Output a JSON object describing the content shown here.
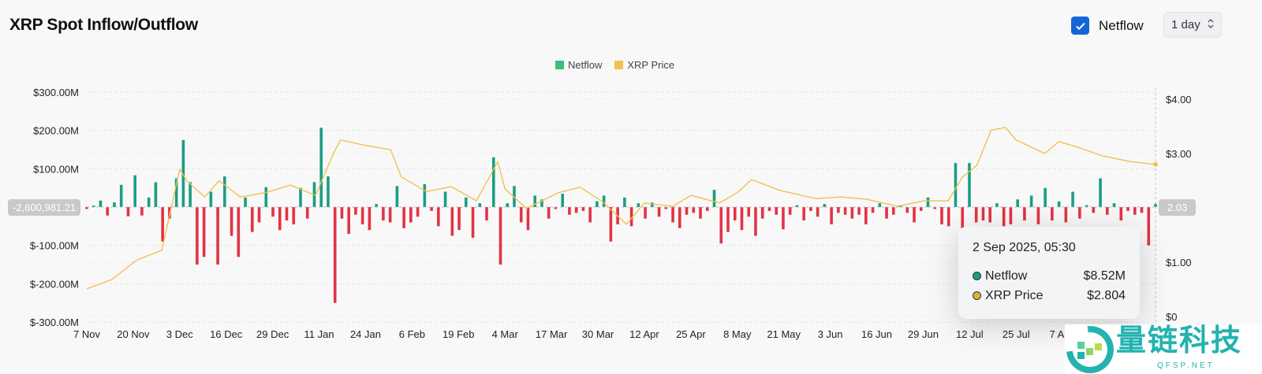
{
  "header": {
    "title": "XRP Spot Inflow/Outflow",
    "netflow_toggle_label": "Netflow",
    "netflow_checked": true,
    "interval_value": "1 day"
  },
  "colors": {
    "inflow": "#1a9e85",
    "outflow": "#e23344",
    "price": "#f2c14e",
    "legend_netflow": "#35c27a",
    "checkbox": "#1565d8"
  },
  "tooltip": {
    "date": "2 Sep 2025, 05:30",
    "rows": [
      {
        "name": "Netflow",
        "value": "$8.52M",
        "dot": "#1a9e85"
      },
      {
        "name": "XRP Price",
        "value": "$2.804",
        "dot": "#d9b13c"
      }
    ]
  },
  "crosshair": {
    "left_value": "-2,600,981.21",
    "right_value": "2.03"
  },
  "watermark": {
    "text": "量链科技",
    "sub": "QFSP.NET"
  },
  "chart_data": {
    "type": "bar+line",
    "legend": [
      "Netflow",
      "XRP Price"
    ],
    "legend_position": "top-center",
    "grid": true,
    "x_range": [
      "2024-11-07",
      "2025-09-02"
    ],
    "x_ticks": [
      "7 Nov",
      "20 Nov",
      "3 Dec",
      "16 Dec",
      "29 Dec",
      "11 Jan",
      "24 Jan",
      "6 Feb",
      "19 Feb",
      "4 Mar",
      "17 Mar",
      "30 Mar",
      "12 Apr",
      "25 Apr",
      "8 May",
      "21 May",
      "3 Jun",
      "16 Jun",
      "29 Jun",
      "12 Jul",
      "25 Jul",
      "7 Aug"
    ],
    "y_left": {
      "ticks": [
        "$300.00M",
        "$200.00M",
        "$100.00M",
        "$-100.00M",
        "$-200.00M",
        "$-300.00M"
      ],
      "tick_values": [
        300,
        200,
        100,
        -100,
        -200,
        -300
      ],
      "range": [
        -300,
        300
      ],
      "unit": "USD millions"
    },
    "y_right": {
      "ticks": [
        "$4.00",
        "$3.00",
        "$1.00",
        "$0"
      ],
      "tick_values": [
        4,
        3,
        1,
        0
      ],
      "range": [
        0,
        4
      ],
      "unit": "USD"
    },
    "series": [
      {
        "name": "Netflow",
        "type": "bar",
        "unit": "USD millions",
        "values": [
          -5,
          4,
          17,
          -22,
          12,
          58,
          -24,
          83,
          -22,
          25,
          65,
          -90,
          -30,
          75,
          175,
          65,
          -150,
          -130,
          40,
          -150,
          80,
          -75,
          -130,
          25,
          -65,
          -40,
          52,
          -25,
          -60,
          -35,
          -45,
          50,
          -30,
          65,
          207,
          80,
          -250,
          -30,
          -70,
          -20,
          -45,
          -60,
          8,
          -35,
          -40,
          55,
          -55,
          -40,
          -25,
          60,
          -10,
          -50,
          40,
          -75,
          -60,
          25,
          -80,
          10,
          -35,
          130,
          -150,
          10,
          55,
          -40,
          -60,
          30,
          20,
          -30,
          -5,
          35,
          -20,
          -15,
          -10,
          -40,
          15,
          30,
          -90,
          -45,
          25,
          -50,
          10,
          -30,
          12,
          -25,
          -5,
          -40,
          -55,
          -20,
          -15,
          -30,
          -10,
          45,
          -95,
          -65,
          -35,
          -60,
          -25,
          -75,
          -30,
          -10,
          -20,
          -58,
          -20,
          5,
          -35,
          -10,
          -25,
          8,
          -45,
          -15,
          -20,
          -30,
          -20,
          -45,
          -15,
          10,
          -30,
          -20,
          5,
          -15,
          -40,
          -10,
          25,
          -5,
          -45,
          -50,
          115,
          -55,
          115,
          -40,
          -35,
          -40,
          10,
          -50,
          -45,
          20,
          -35,
          30,
          -45,
          50,
          -35,
          15,
          -40,
          40,
          -30,
          5,
          -15,
          75,
          -20,
          10,
          -35,
          -10,
          -20,
          -15,
          -100,
          8.52
        ]
      },
      {
        "name": "XRP Price",
        "type": "line",
        "unit": "USD",
        "points": [
          [
            "2024-11-07",
            0.51
          ],
          [
            "2024-11-14",
            0.68
          ],
          [
            "2024-11-21",
            1.04
          ],
          [
            "2024-11-28",
            1.22
          ],
          [
            "2024-12-03",
            2.71
          ],
          [
            "2024-12-05",
            2.5
          ],
          [
            "2024-12-10",
            2.2
          ],
          [
            "2024-12-14",
            2.5
          ],
          [
            "2024-12-20",
            2.2
          ],
          [
            "2024-12-27",
            2.28
          ],
          [
            "2025-01-03",
            2.42
          ],
          [
            "2025-01-10",
            2.23
          ],
          [
            "2025-01-15",
            3.0
          ],
          [
            "2025-01-17",
            3.25
          ],
          [
            "2025-01-24",
            3.15
          ],
          [
            "2025-01-31",
            3.07
          ],
          [
            "2025-02-03",
            2.57
          ],
          [
            "2025-02-10",
            2.3
          ],
          [
            "2025-02-17",
            2.39
          ],
          [
            "2025-02-24",
            2.13
          ],
          [
            "2025-03-02",
            2.85
          ],
          [
            "2025-03-04",
            2.35
          ],
          [
            "2025-03-10",
            1.99
          ],
          [
            "2025-03-19",
            2.28
          ],
          [
            "2025-03-25",
            2.38
          ],
          [
            "2025-03-31",
            2.13
          ],
          [
            "2025-04-07",
            1.7
          ],
          [
            "2025-04-12",
            2.09
          ],
          [
            "2025-04-20",
            2.03
          ],
          [
            "2025-04-25",
            2.23
          ],
          [
            "2025-05-03",
            2.09
          ],
          [
            "2025-05-08",
            2.28
          ],
          [
            "2025-05-12",
            2.52
          ],
          [
            "2025-05-20",
            2.32
          ],
          [
            "2025-05-30",
            2.17
          ],
          [
            "2025-06-06",
            2.2
          ],
          [
            "2025-06-13",
            2.16
          ],
          [
            "2025-06-22",
            2.03
          ],
          [
            "2025-06-29",
            2.13
          ],
          [
            "2025-07-06",
            2.13
          ],
          [
            "2025-07-10",
            2.57
          ],
          [
            "2025-07-14",
            2.78
          ],
          [
            "2025-07-18",
            3.43
          ],
          [
            "2025-07-22",
            3.48
          ],
          [
            "2025-07-25",
            3.25
          ],
          [
            "2025-08-02",
            3.0
          ],
          [
            "2025-08-06",
            3.22
          ],
          [
            "2025-08-12",
            3.1
          ],
          [
            "2025-08-18",
            2.96
          ],
          [
            "2025-08-26",
            2.85
          ],
          [
            "2025-09-02",
            2.8
          ]
        ]
      }
    ]
  }
}
